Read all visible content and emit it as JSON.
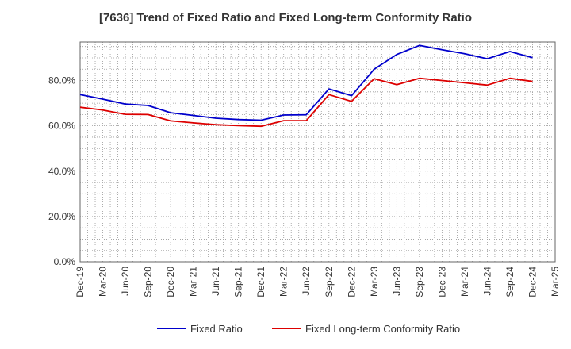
{
  "chart_data": {
    "type": "line",
    "title": "[7636]  Trend of Fixed Ratio and Fixed Long-term Conformity Ratio",
    "xlabel": "",
    "ylabel": "",
    "x": [
      "Dec-19",
      "Mar-20",
      "Jun-20",
      "Sep-20",
      "Dec-20",
      "Mar-21",
      "Jun-21",
      "Sep-21",
      "Dec-21",
      "Mar-22",
      "Jun-22",
      "Sep-22",
      "Dec-22",
      "Mar-23",
      "Jun-23",
      "Sep-23",
      "Dec-23",
      "Mar-24",
      "Jun-24",
      "Sep-24",
      "Dec-24",
      "Mar-25"
    ],
    "y_ticks": [
      "0.0%",
      "20.0%",
      "40.0%",
      "60.0%",
      "80.0%"
    ],
    "ylim": [
      0,
      97
    ],
    "grid": true,
    "legend_position": "bottom",
    "series": [
      {
        "name": "Fixed Ratio",
        "color": "#0000cc",
        "values": [
          73.8,
          71.8,
          69.6,
          69.0,
          65.8,
          64.6,
          63.4,
          62.8,
          62.5,
          64.8,
          64.9,
          76.3,
          73.3,
          85.0,
          91.5,
          95.5,
          93.6,
          91.8,
          89.6,
          92.8,
          90.1,
          null
        ]
      },
      {
        "name": "Fixed Long-term Conformity Ratio",
        "color": "#dd0000",
        "values": [
          68.2,
          67.0,
          65.1,
          65.0,
          62.2,
          61.3,
          60.5,
          60.1,
          59.8,
          62.3,
          62.3,
          73.8,
          70.8,
          80.8,
          78.2,
          81.0,
          80.0,
          79.0,
          78.0,
          81.0,
          79.6,
          null
        ]
      }
    ]
  }
}
